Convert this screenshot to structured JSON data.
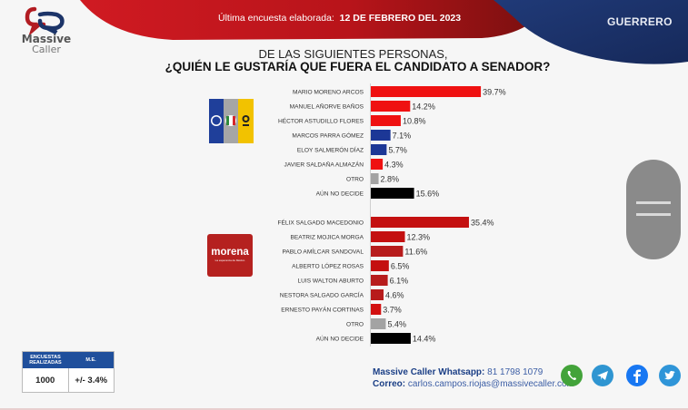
{
  "header": {
    "brand_line1": "Massive",
    "brand_line2": "Caller",
    "survey_label": "Última encuesta elaborada:",
    "survey_date": "12 DE FEBRERO DEL 2023",
    "state": "GUERRERO",
    "colors": {
      "red": "#c4141c",
      "navy": "#1c3468"
    }
  },
  "question": {
    "line1": "DE LAS SIGUIENTES  PERSONAS,",
    "line2": "¿QUIÉN LE GUSTARÍA QUE FUERA EL CANDIDATO  A SENADOR?"
  },
  "parties": {
    "alliance": {
      "name": "PAN PRI PRD",
      "colors": [
        "#1f3f9a",
        "#a6a6a6",
        "#f2c200"
      ]
    },
    "morena": {
      "name": "morena",
      "tagline": "La esperanza de México",
      "color": "#b5211f"
    }
  },
  "chart_data": {
    "type": "bar",
    "orientation": "horizontal",
    "title": "¿QUIÉN LE GUSTARÍA QUE FUERA EL CANDIDATO  A SENADOR?",
    "unit": "%",
    "xlim": [
      0,
      40
    ],
    "groups": [
      {
        "name": "PAN-PRI-PRD",
        "categories": [
          "MARIO MORENO ARCOS",
          "MANUEL AÑORVE BAÑOS",
          "HÉCTOR ASTUDILLO FLORES",
          "MARCOS PARRA GÓMEZ",
          "ELOY SALMERÓN DÍAZ",
          "JAVIER SALDAÑA ALMAZÁN",
          "OTRO",
          "AÚN NO DECIDE"
        ],
        "values": [
          39.7,
          14.2,
          10.8,
          7.1,
          5.7,
          4.3,
          2.8,
          15.6
        ],
        "labels": [
          "39.7%",
          "14.2%",
          "10.8%",
          "7.1%",
          "5.7%",
          "4.3%",
          "2.8%",
          "15.6%"
        ],
        "colors": [
          "#ef1111",
          "#ef1111",
          "#ef1111",
          "#1c3796",
          "#1c3796",
          "#ef1111",
          "#a3a3a3",
          "#000000"
        ]
      },
      {
        "name": "MORENA",
        "categories": [
          "FÉLIX SALGADO MACEDONIO",
          "BEATRIZ MOJICA MORGA",
          "PABLO AMÍLCAR SANDOVAL",
          "ALBERTO LÓPEZ ROSAS",
          "LUIS WALTON ABURTO",
          "NESTORA SALGADO GARCÍA",
          "ERNESTO PAYÁN CORTINAS",
          "OTRO",
          "AÚN NO DECIDE"
        ],
        "values": [
          35.4,
          12.3,
          11.6,
          6.5,
          6.1,
          4.6,
          3.7,
          5.4,
          14.4
        ],
        "labels": [
          "35.4%",
          "12.3%",
          "11.6%",
          "6.5%",
          "6.1%",
          "4.6%",
          "3.7%",
          "5.4%",
          "14.4%"
        ],
        "colors": [
          "#c41010",
          "#c41010",
          "#b71c1c",
          "#c41010",
          "#b71c1c",
          "#b71c1c",
          "#d21010",
          "#a3a3a3",
          "#000000"
        ]
      }
    ]
  },
  "stats": {
    "col1_header": "ENCUESTAS REALIZADAS",
    "col2_header": "M.E.",
    "col1_value": "1000",
    "col2_value": "+/- 3.4%"
  },
  "contact": {
    "whatsapp_label": "Massive Caller Whatsapp:",
    "whatsapp_number": "81 1798 1079",
    "email_label": "Correo:",
    "email": "carlos.campos.riojas@massivecaller.com"
  },
  "social": [
    {
      "icon": "whatsapp-icon",
      "color": "#43a33a"
    },
    {
      "icon": "telegram-icon",
      "color": "#2f95d1"
    },
    {
      "icon": "facebook-icon",
      "color": "#1877f2"
    },
    {
      "icon": "twitter-icon",
      "color": "#2f95d8"
    }
  ]
}
